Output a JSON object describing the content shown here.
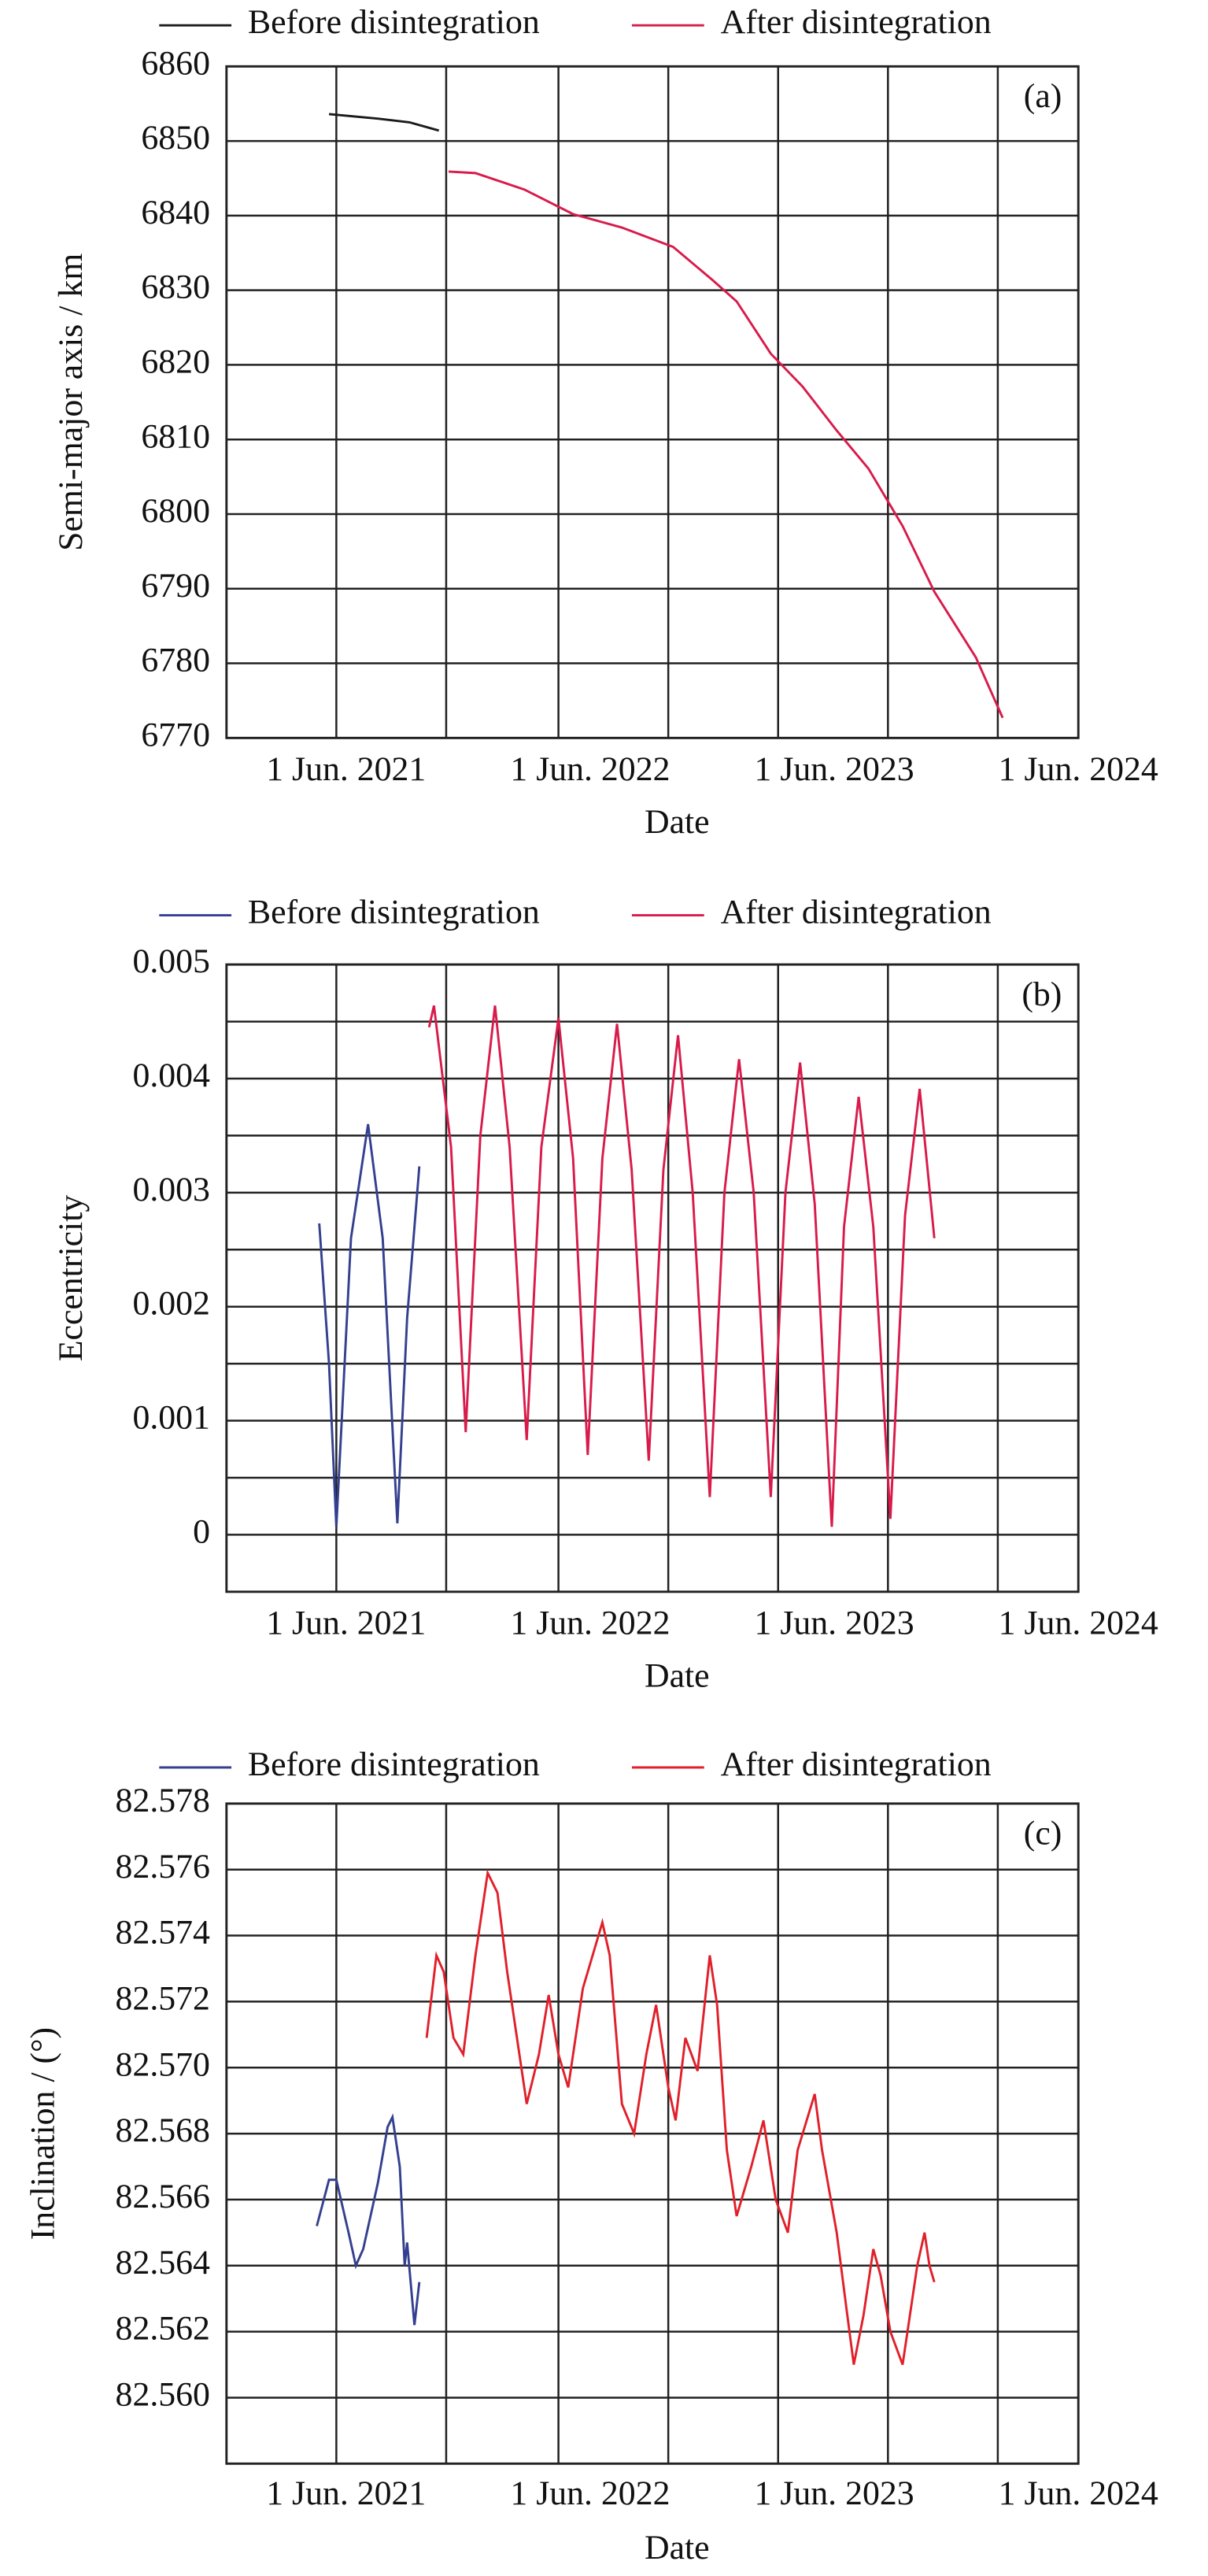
{
  "chart_data": [
    {
      "type": "line",
      "panel_label": "(a)",
      "x_label": "Date",
      "y_label": "Semi-major axis / km",
      "xlim": [
        2020.93,
        2024.42
      ],
      "xticks": [
        {
          "value": 2021.42,
          "label": "1 Jun. 2021"
        },
        {
          "value": 2022.42,
          "label": "1 Jun. 2022"
        },
        {
          "value": 2023.42,
          "label": "1 Jun. 2023"
        },
        {
          "value": 2024.42,
          "label": "1 Jun. 2024"
        }
      ],
      "x_gridlines": [
        2021.38,
        2021.83,
        2022.29,
        2022.74,
        2023.19,
        2023.64,
        2024.09
      ],
      "ylim": [
        6770,
        6860
      ],
      "yticks": [
        6770,
        6780,
        6790,
        6800,
        6810,
        6820,
        6830,
        6840,
        6850,
        6860
      ],
      "grid": true,
      "series": [
        {
          "name": "Before disintegration",
          "color": "#1a1a1a",
          "x": [
            2021.35,
            2021.55,
            2021.68,
            2021.8
          ],
          "values": [
            6853.6,
            6853.0,
            6852.5,
            6851.4
          ]
        },
        {
          "name": "After disintegration",
          "color": "#d81b4a",
          "x": [
            2021.84,
            2021.95,
            2022.15,
            2022.35,
            2022.55,
            2022.76,
            2022.92,
            2023.02,
            2023.16,
            2023.29,
            2023.43,
            2023.56,
            2023.7,
            2023.83,
            2024.0,
            2024.11
          ],
          "values": [
            6845.9,
            6845.7,
            6843.5,
            6840.2,
            6838.4,
            6835.8,
            6831.4,
            6828.5,
            6821.5,
            6817.1,
            6811.2,
            6806.1,
            6798.4,
            6789.6,
            6780.8,
            6772.7
          ]
        }
      ]
    },
    {
      "type": "line",
      "panel_label": "(b)",
      "x_label": "Date",
      "y_label": "Eccentricity",
      "xlim": [
        2020.93,
        2024.42
      ],
      "xticks": [
        {
          "value": 2021.42,
          "label": "1 Jun. 2021"
        },
        {
          "value": 2022.42,
          "label": "1 Jun. 2022"
        },
        {
          "value": 2023.42,
          "label": "1 Jun. 2023"
        },
        {
          "value": 2024.42,
          "label": "1 Jun. 2024"
        }
      ],
      "x_gridlines": [
        2021.38,
        2021.83,
        2022.29,
        2022.74,
        2023.19,
        2023.64,
        2024.09
      ],
      "ylim": [
        -0.0005,
        0.005
      ],
      "yticks": [
        0,
        0.001,
        0.002,
        0.003,
        0.004,
        0.005
      ],
      "y_gridlines": [
        0,
        0.0005,
        0.001,
        0.0015,
        0.002,
        0.0025,
        0.003,
        0.0035,
        0.004,
        0.0045,
        0.005
      ],
      "grid": true,
      "series": [
        {
          "name": "Before disintegration",
          "color": "#34408f",
          "x": [
            2021.31,
            2021.35,
            2021.38,
            2021.44,
            2021.51,
            2021.57,
            2021.63,
            2021.67,
            2021.72
          ],
          "values": [
            0.00273,
            0.0015,
            7e-05,
            0.0026,
            0.0036,
            0.0026,
            0.0001,
            0.0019,
            0.00323
          ]
        },
        {
          "name": "After disintegration",
          "color": "#d81b4a",
          "x": [
            2021.76,
            2021.78,
            2021.85,
            2021.91,
            2021.97,
            2022.03,
            2022.09,
            2022.16,
            2022.22,
            2022.29,
            2022.35,
            2022.41,
            2022.47,
            2022.53,
            2022.59,
            2022.66,
            2022.72,
            2022.78,
            2022.84,
            2022.91,
            2022.97,
            2023.03,
            2023.09,
            2023.16,
            2023.22,
            2023.28,
            2023.34,
            2023.41,
            2023.46,
            2023.52,
            2023.58,
            2023.65,
            2023.71,
            2023.77,
            2023.83
          ],
          "values": [
            0.00445,
            0.00464,
            0.0034,
            0.0009,
            0.0035,
            0.00464,
            0.0034,
            0.00083,
            0.0034,
            0.00453,
            0.0033,
            0.0007,
            0.0033,
            0.00448,
            0.0032,
            0.00065,
            0.0032,
            0.00438,
            0.003,
            0.00033,
            0.003,
            0.00417,
            0.003,
            0.00033,
            0.003,
            0.00414,
            0.0029,
            7e-05,
            0.0027,
            0.00384,
            0.0027,
            0.00014,
            0.0028,
            0.00391,
            0.0026
          ]
        }
      ]
    },
    {
      "type": "line",
      "panel_label": "(c)",
      "x_label": "Date",
      "y_label": "Inclination / (°)",
      "xlim": [
        2020.93,
        2024.42
      ],
      "xticks": [
        {
          "value": 2021.42,
          "label": "1 Jun. 2021"
        },
        {
          "value": 2022.42,
          "label": "1 Jun. 2022"
        },
        {
          "value": 2023.42,
          "label": "1 Jun. 2023"
        },
        {
          "value": 2024.42,
          "label": "1 Jun. 2024"
        }
      ],
      "x_gridlines": [
        2021.38,
        2021.83,
        2022.29,
        2022.74,
        2023.19,
        2023.64,
        2024.09
      ],
      "ylim": [
        82.558,
        82.578
      ],
      "yticks": [
        {
          "value": 82.56,
          "label": "82.560"
        },
        82.562,
        82.564,
        82.566,
        82.568,
        {
          "value": 82.57,
          "label": "82.570"
        },
        82.572,
        82.574,
        82.576,
        82.578
      ],
      "grid": true,
      "series": [
        {
          "name": "Before disintegration",
          "color": "#34408f",
          "x": [
            2021.3,
            2021.35,
            2021.38,
            2021.43,
            2021.46,
            2021.49,
            2021.55,
            2021.59,
            2021.61,
            2021.64,
            2021.66,
            2021.67,
            2021.7,
            2021.72
          ],
          "values": [
            82.5652,
            82.5666,
            82.5666,
            82.565,
            82.564,
            82.5645,
            82.5665,
            82.5682,
            82.5685,
            82.567,
            82.564,
            82.5647,
            82.5622,
            82.5635
          ]
        },
        {
          "name": "After disintegration",
          "color": "#e0202a",
          "x": [
            2021.75,
            2021.79,
            2021.82,
            2021.86,
            2021.9,
            2021.95,
            2022.0,
            2022.04,
            2022.08,
            2022.12,
            2022.16,
            2022.21,
            2022.25,
            2022.29,
            2022.33,
            2022.39,
            2022.47,
            2022.5,
            2022.55,
            2022.6,
            2022.65,
            2022.69,
            2022.74,
            2022.77,
            2022.81,
            2022.86,
            2022.91,
            2022.94,
            2022.98,
            2023.02,
            2023.08,
            2023.13,
            2023.18,
            2023.23,
            2023.27,
            2023.34,
            2023.37,
            2023.43,
            2023.47,
            2023.5,
            2023.54,
            2023.58,
            2023.61,
            2023.65,
            2023.7,
            2023.74,
            2023.76,
            2023.79,
            2023.81,
            2023.83
          ],
          "values": [
            82.5709,
            82.5734,
            82.5729,
            82.5709,
            82.5704,
            82.5734,
            82.5759,
            82.5753,
            82.5729,
            82.5709,
            82.5689,
            82.5704,
            82.5722,
            82.5704,
            82.5694,
            82.5724,
            82.5744,
            82.5734,
            82.5689,
            82.568,
            82.5704,
            82.5719,
            82.5694,
            82.5684,
            82.5709,
            82.5699,
            82.5734,
            82.5719,
            82.5675,
            82.5655,
            82.567,
            82.5684,
            82.566,
            82.565,
            82.5675,
            82.5692,
            82.5675,
            82.565,
            82.5627,
            82.561,
            82.5625,
            82.5645,
            82.5637,
            82.562,
            82.561,
            82.563,
            82.564,
            82.565,
            82.564,
            82.5635
          ]
        }
      ]
    }
  ]
}
